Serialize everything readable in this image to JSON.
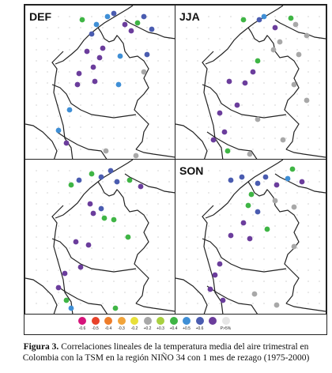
{
  "caption": {
    "label": "Figura 3.",
    "line1": "Correlaciones lineales de la temperatura media del aire trimestral en",
    "line2": "Colombia con la TSM en la región NIÑO 34 con 1 mes de rezago (1975-2000)"
  },
  "panels": [
    {
      "label": "DEF"
    },
    {
      "label": "JJA"
    },
    {
      "label": ""
    },
    {
      "label": "SON"
    }
  ],
  "legend": [
    {
      "label": "-0.6",
      "color": "#d6147b"
    },
    {
      "label": "-0.5",
      "color": "#e8422a"
    },
    {
      "label": "-0.4",
      "color": "#ee7d2a"
    },
    {
      "label": "-0.3",
      "color": "#f2a43a"
    },
    {
      "label": "-0.2",
      "color": "#e8e03a"
    },
    {
      "label": "+0.2",
      "color": "#a8a8a8"
    },
    {
      "label": "+0.3",
      "color": "#a8d040"
    },
    {
      "label": "+0.4",
      "color": "#3fb545"
    },
    {
      "label": "+0.5",
      "color": "#3f8fd6"
    },
    {
      "label": "+0.6",
      "color": "#4a5cb0"
    },
    {
      "label": "",
      "color": "#6b3d9c"
    },
    {
      "label": "P>5%",
      "color": "#e6e6e6"
    }
  ]
}
